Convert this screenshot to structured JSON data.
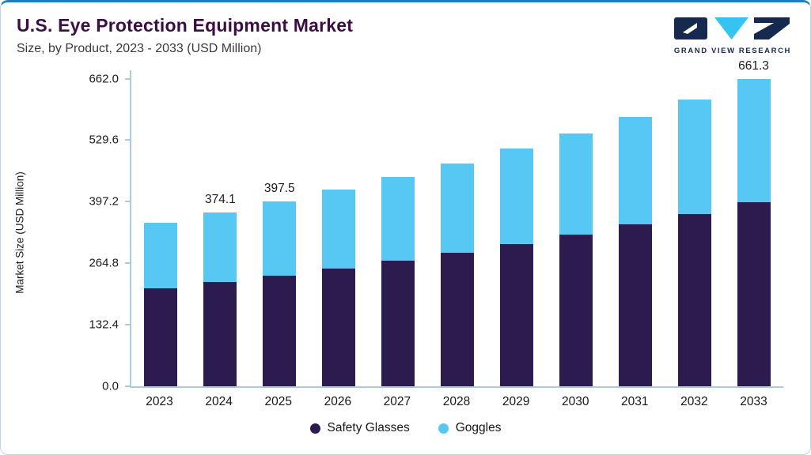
{
  "logo": {
    "text": "GRAND VIEW RESEARCH"
  },
  "chart_data": {
    "type": "bar",
    "stacked": true,
    "title": "U.S. Eye Protection Equipment Market",
    "subtitle": "Size, by Product, 2023 - 2033 (USD Million)",
    "ylabel": "Market Size (USD Million)",
    "ylim": [
      0,
      662
    ],
    "grid": false,
    "legend_position": "bottom",
    "yticks": [
      "0.0",
      "132.4",
      "264.8",
      "397.2",
      "529.6",
      "662.0"
    ],
    "categories": [
      "2023",
      "2024",
      "2025",
      "2026",
      "2027",
      "2028",
      "2029",
      "2030",
      "2031",
      "2032",
      "2033"
    ],
    "series": [
      {
        "name": "Safety Glasses",
        "color": "#2b1b4e",
        "values": [
          210.8,
          224.5,
          238.5,
          254.0,
          270.5,
          288.1,
          306.8,
          326.8,
          348.1,
          370.7,
          396.8
        ]
      },
      {
        "name": "Goggles",
        "color": "#57c7f4",
        "values": [
          140.6,
          149.6,
          159.0,
          169.4,
          180.4,
          192.1,
          204.6,
          217.9,
          232.0,
          247.1,
          264.5
        ]
      }
    ],
    "totals": [
      351.4,
      374.1,
      397.5,
      423.4,
      450.9,
      480.2,
      511.4,
      544.7,
      580.1,
      617.8,
      661.3
    ],
    "value_labels": {
      "2024": "374.1",
      "2025": "397.5",
      "2033": "661.3"
    },
    "colors": {
      "accent_line": "#1d7fc1",
      "axis": "#aecbdd",
      "logo_navy": "#16294e",
      "logo_cyan": "#35c4f0",
      "title": "#3c0d45"
    }
  }
}
